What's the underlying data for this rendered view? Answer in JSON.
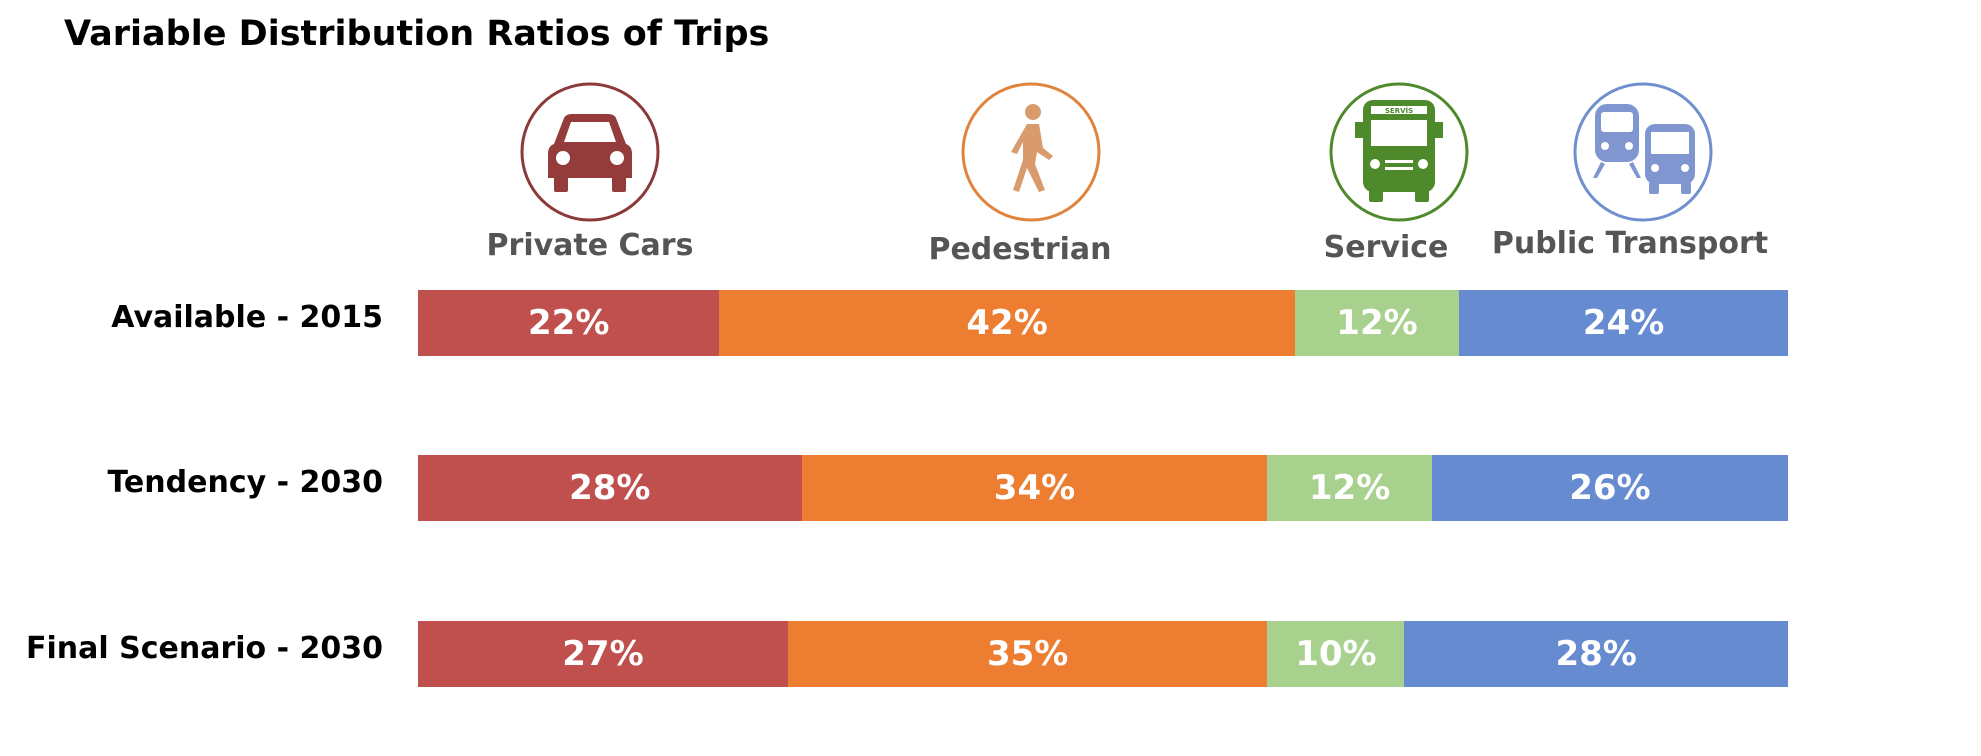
{
  "chart_data": {
    "type": "bar",
    "orientation": "horizontal",
    "stacked": "percent",
    "title": "Variable Distribution Ratios of Trips",
    "categories": [
      "Available - 2015",
      "Tendency - 2030",
      "Final Scenario - 2030"
    ],
    "series": [
      {
        "name": "Private Cars",
        "values": [
          22,
          28,
          27
        ],
        "labels": [
          "22%",
          "28%",
          "27%"
        ],
        "color": "#c0504d",
        "icon": "car-icon"
      },
      {
        "name": "Pedestrian",
        "values": [
          42,
          34,
          35
        ],
        "labels": [
          "42%",
          "34%",
          "35%"
        ],
        "color": "#ed7d31",
        "icon": "pedestrian-icon"
      },
      {
        "name": "Service",
        "values": [
          12,
          12,
          10
        ],
        "labels": [
          "12%",
          "12%",
          "10%"
        ],
        "color": "#a9d18e",
        "icon": "service-bus-icon"
      },
      {
        "name": "Public Transport",
        "values": [
          24,
          26,
          28
        ],
        "labels": [
          "24%",
          "26%",
          "28%"
        ],
        "color": "#668bd0",
        "icon": "train-bus-icon"
      }
    ],
    "xlim": [
      0,
      100
    ],
    "legend": "top",
    "grid": false
  },
  "icons": {
    "service_sign": "SERVİS",
    "car_ring_color": "#8b3a3a",
    "ped_ring_color": "#e0843d",
    "service_ring_color": "#4e8a2c",
    "public_ring_color": "#6f8fcf",
    "car_fill": "#943c3c",
    "ped_fill": "#d99a6c",
    "service_fill": "#4e8a2c",
    "public_fill": "#8096d0"
  }
}
